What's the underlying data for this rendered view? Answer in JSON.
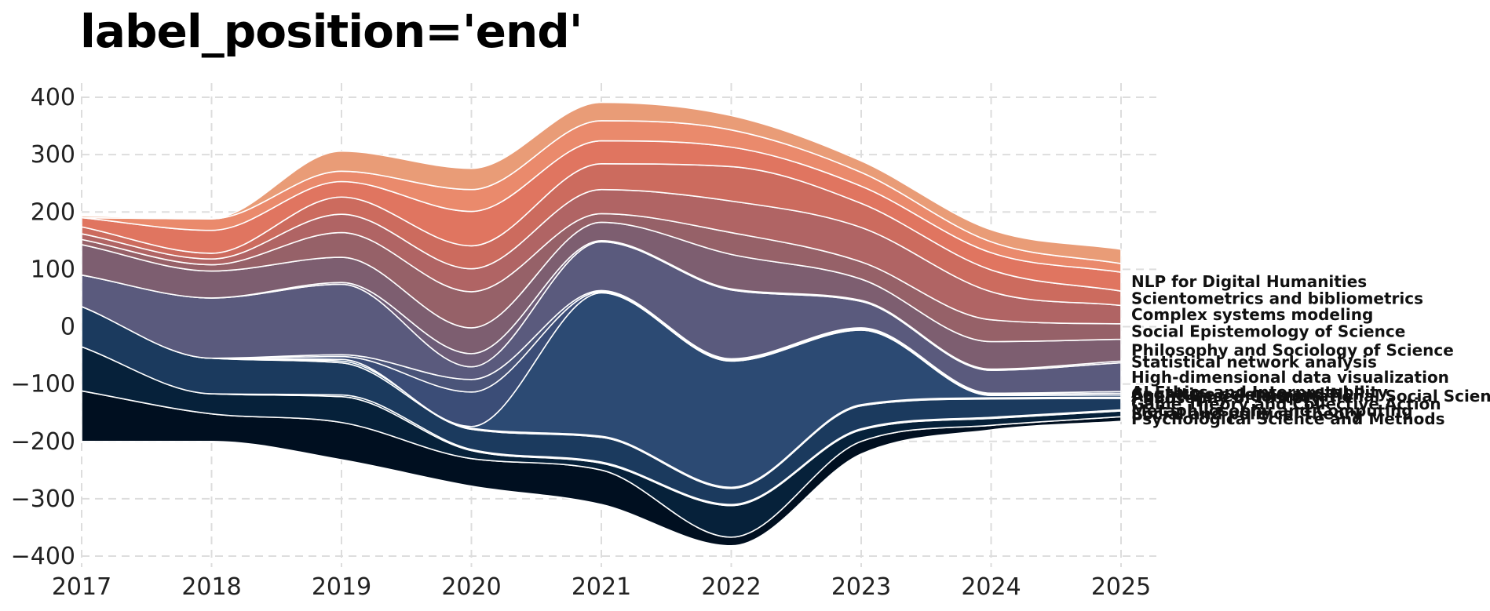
{
  "chart_data": {
    "type": "area",
    "subtype": "streamgraph",
    "title": "label_position='end'",
    "xlabel": "",
    "ylabel": "",
    "x": [
      2017,
      2018,
      2019,
      2020,
      2021,
      2022,
      2023,
      2024,
      2025
    ],
    "xlim": [
      2017,
      2025
    ],
    "ylim": [
      -400,
      400
    ],
    "yticks": [
      -400,
      -300,
      -200,
      -100,
      0,
      100,
      200,
      300,
      400
    ],
    "xticks": [
      2017,
      2018,
      2019,
      2020,
      2021,
      2022,
      2023,
      2024,
      2025
    ],
    "grid": true,
    "label_position": "end",
    "baseline": [
      -200,
      -200,
      -232,
      -278,
      -310,
      -382,
      -222,
      -180,
      -165
    ],
    "series": [
      {
        "name": "Psychological Science and Methods",
        "color": "#000f20",
        "values": [
          88,
          48,
          65,
          48,
          60,
          15,
          22,
          8,
          8
        ]
      },
      {
        "name": "Social and political theory",
        "color": "#06213a",
        "values": [
          77,
          35,
          45,
          14,
          12,
          55,
          20,
          12,
          10
        ]
      },
      {
        "name": "Metaphilosophy and Computing",
        "color": "#10304f",
        "values": [
          0,
          0,
          3,
          2,
          2,
          2,
          2,
          2,
          2
        ]
      },
      {
        "name": "Game Theory and Collective Action",
        "color": "#1b3a5e",
        "values": [
          70,
          62,
          56,
          35,
          43,
          28,
          40,
          32,
          20
        ]
      },
      {
        "name": "Philosophy of History",
        "color": "#264a70",
        "values": [
          0,
          0,
          3,
          2,
          2,
          2,
          2,
          2,
          2
        ]
      },
      {
        "name": "Agent-Based Computational Social Science",
        "color": "#2c4a73",
        "values": [
          0,
          0,
          3,
          3,
          250,
          220,
          130,
          4,
          4
        ]
      },
      {
        "name": "Cognitive science and NLP",
        "color": "#3b4d77",
        "values": [
          0,
          0,
          5,
          60,
          2,
          2,
          2,
          2,
          3
        ]
      },
      {
        "name": "AI Ethics and Interpretability",
        "color": "#4a5479",
        "values": [
          0,
          0,
          3,
          22,
          2,
          2,
          2,
          2,
          3
        ]
      },
      {
        "name": "High-dimensional data visualization",
        "color": "#5a5a7d",
        "values": [
          55,
          105,
          123,
          22,
          85,
          120,
          46,
          40,
          50
        ]
      },
      {
        "name": "Statistical network analysis",
        "color": "#6d5c78",
        "values": [
          0,
          0,
          3,
          23,
          2,
          2,
          2,
          2,
          3
        ]
      },
      {
        "name": "Philosophy and Sociology of Science",
        "color": "#7d5e70",
        "values": [
          53,
          47,
          44,
          45,
          32,
          60,
          37,
          48,
          38
        ]
      },
      {
        "name": "Social Epistemology of Science",
        "color": "#966168",
        "values": [
          9,
          11,
          43,
          63,
          15,
          38,
          30,
          38,
          27
        ]
      },
      {
        "name": "Complex systems modeling",
        "color": "#b06464",
        "values": [
          10,
          10,
          32,
          40,
          42,
          55,
          60,
          49,
          32
        ]
      },
      {
        "name": "Scientometrics and bibliometrics",
        "color": "#cc6b5e",
        "values": [
          12,
          10,
          30,
          40,
          45,
          60,
          42,
          38,
          25
        ]
      },
      {
        "name": "NLP for Digital Humanities",
        "color": "#e07560",
        "values": [
          16,
          40,
          27,
          60,
          40,
          34,
          30,
          30,
          33
        ]
      },
      {
        "name": "",
        "color": "#ea8a6c",
        "values": [
          0,
          20,
          18,
          38,
          35,
          30,
          24,
          19,
          15
        ]
      },
      {
        "name": "",
        "color": "#e99c77",
        "values": [
          3,
          1,
          35,
          37,
          32,
          25,
          20,
          21,
          25
        ]
      }
    ]
  }
}
